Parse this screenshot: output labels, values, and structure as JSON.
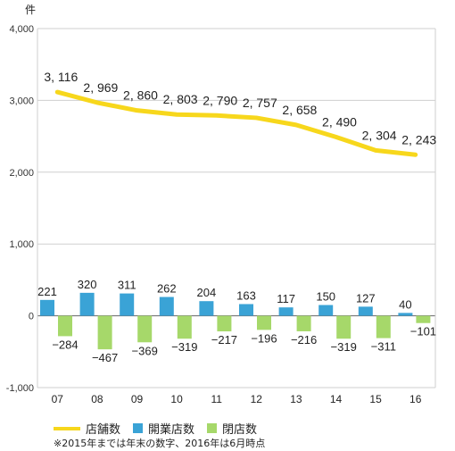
{
  "chart_data": {
    "type": "bar",
    "unit_label": "件",
    "categories": [
      "07",
      "08",
      "09",
      "10",
      "11",
      "12",
      "13",
      "14",
      "15",
      "16"
    ],
    "ylim": [
      -1000,
      4000
    ],
    "yticks": [
      -1000,
      0,
      1000,
      2000,
      3000,
      4000
    ],
    "ytick_labels": [
      "-1,000",
      "0",
      "1,000",
      "2,000",
      "3,000",
      "4,000"
    ],
    "grid": true,
    "legend_position": "bottom-left",
    "series": [
      {
        "name": "店舗数",
        "kind": "line",
        "color": "#f7d71c",
        "values": [
          3116,
          2969,
          2860,
          2803,
          2790,
          2757,
          2658,
          2490,
          2304,
          2243
        ],
        "labels": [
          "3, 116",
          "2, 969",
          "2, 860",
          "2, 803",
          "2, 790",
          "2, 757",
          "2, 658",
          "2, 490",
          "2, 304",
          "2, 243"
        ]
      },
      {
        "name": "開業店数",
        "kind": "bar",
        "color": "#3aa3d6",
        "values": [
          221,
          320,
          311,
          262,
          204,
          163,
          117,
          150,
          127,
          40
        ],
        "labels": [
          "221",
          "320",
          "311",
          "262",
          "204",
          "163",
          "117",
          "150",
          "127",
          "40"
        ]
      },
      {
        "name": "閉店数",
        "kind": "bar",
        "color": "#a6d86a",
        "values": [
          -284,
          -467,
          -369,
          -319,
          -217,
          -196,
          -216,
          -319,
          -311,
          -101
        ],
        "labels": [
          "−284",
          "−467",
          "−369",
          "−319",
          "−217",
          "−196",
          "−216",
          "−319",
          "−311",
          "−101"
        ]
      }
    ],
    "note": "※2015年までは年末の数字、2016年は6月時点"
  }
}
